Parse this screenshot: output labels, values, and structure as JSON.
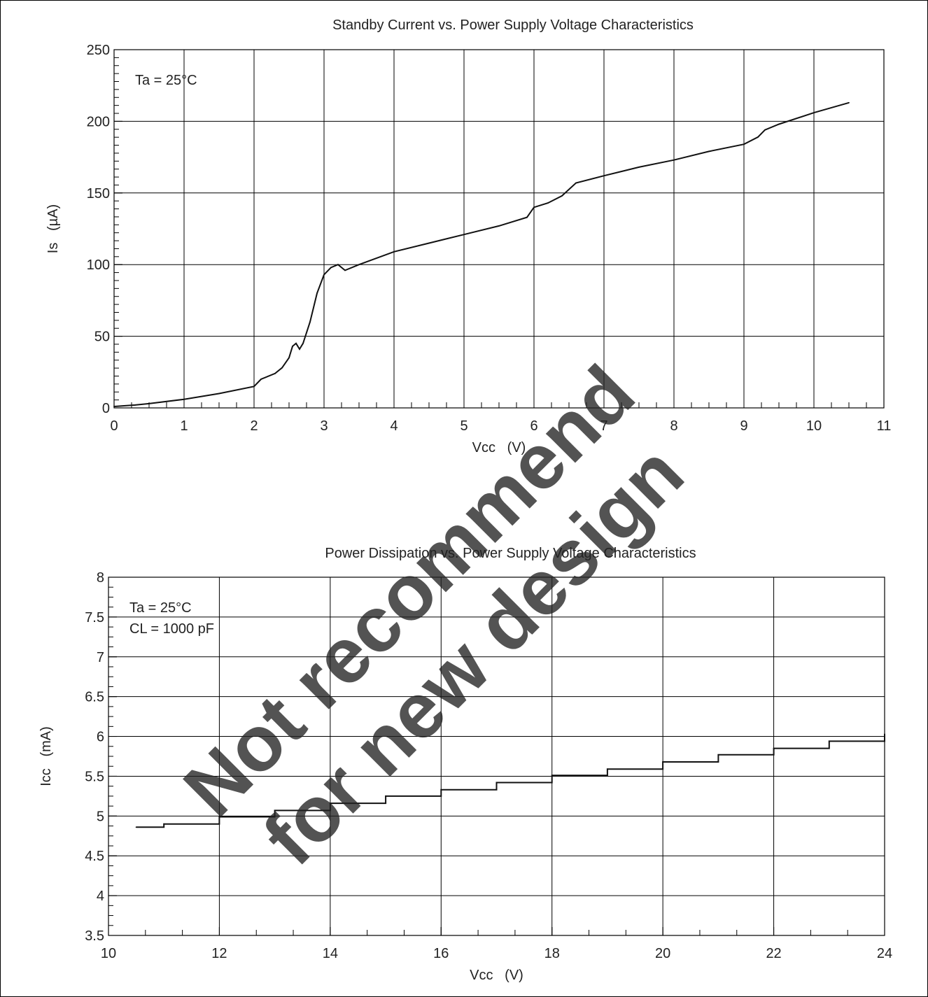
{
  "chart_data": [
    {
      "type": "line",
      "title": "Standby Current vs. Power Supply Voltage Characteristics",
      "xlabel": "Vcc   (V)",
      "ylabel": "Is   (µA)",
      "annotations": [
        "Ta = 25°C"
      ],
      "xlim": [
        0,
        11
      ],
      "ylim": [
        0,
        250
      ],
      "xticks": [
        0,
        1,
        2,
        3,
        4,
        5,
        6,
        7,
        8,
        9,
        10,
        11
      ],
      "yticks": [
        0,
        50,
        100,
        150,
        200,
        250
      ],
      "grid": true,
      "series": [
        {
          "x": [
            0.0,
            0.3,
            0.5,
            1.0,
            1.5,
            2.0,
            2.1,
            2.3,
            2.4,
            2.5,
            2.55,
            2.6,
            2.65,
            2.7,
            2.8,
            2.9,
            3.0,
            3.1,
            3.2,
            3.3,
            3.5,
            4.0,
            4.5,
            5.0,
            5.5,
            5.9,
            6.0,
            6.2,
            6.4,
            6.6,
            7.0,
            7.5,
            8.0,
            8.5,
            9.0,
            9.2,
            9.3,
            9.5,
            10.0,
            10.5
          ],
          "values": [
            1,
            2,
            3,
            6,
            10,
            15,
            20,
            24,
            28,
            35,
            43,
            45,
            41,
            45,
            60,
            80,
            93,
            98,
            100,
            96,
            100,
            109,
            115,
            121,
            127,
            133,
            140,
            143,
            148,
            157,
            162,
            168,
            173,
            179,
            184,
            189,
            194,
            198,
            206,
            213
          ]
        }
      ]
    },
    {
      "type": "line",
      "title": "Power Dissipation vs. Power Supply Voltage Characteristics",
      "xlabel": "Vcc   (V)",
      "ylabel": "Icc   (mA)",
      "annotations": [
        "Ta = 25°C",
        "CL = 1000 pF"
      ],
      "xlim": [
        10,
        24
      ],
      "ylim": [
        3.5,
        8
      ],
      "xticks": [
        10,
        12,
        14,
        16,
        18,
        20,
        22,
        24
      ],
      "yticks": [
        3.5,
        4,
        4.5,
        5,
        5.5,
        6,
        6.5,
        7,
        7.5,
        8
      ],
      "grid": true,
      "series": [
        {
          "x": [
            10.5,
            11,
            12,
            13,
            14,
            15,
            16,
            17,
            18,
            19,
            20,
            21,
            22,
            23,
            24
          ],
          "values": [
            4.86,
            4.9,
            4.99,
            5.07,
            5.16,
            5.25,
            5.33,
            5.42,
            5.51,
            5.59,
            5.68,
            5.77,
            5.85,
            5.94,
            6.03
          ]
        }
      ]
    }
  ],
  "watermark": {
    "line1": "Not recommend",
    "line2": "for new design",
    "color": "#ff0000"
  }
}
